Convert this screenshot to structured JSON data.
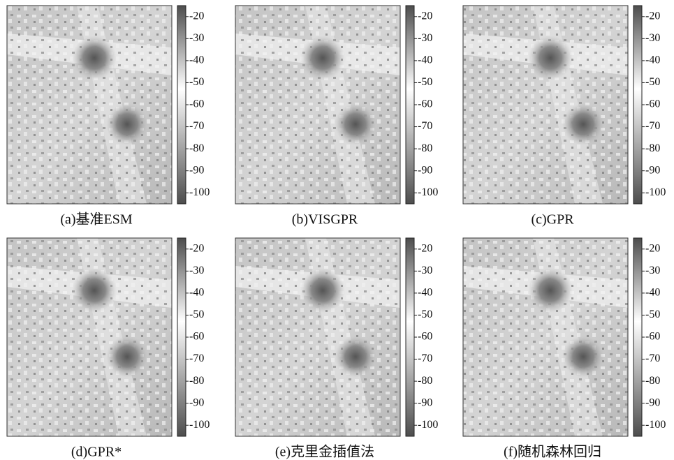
{
  "panels": [
    {
      "caption": "(a)基准ESM",
      "colorbar": {
        "range": [
          -105,
          -15
        ],
        "ticks": [
          -20,
          -30,
          -40,
          -50,
          -60,
          -70,
          -80,
          -90,
          -100
        ]
      }
    },
    {
      "caption": "(b)VISGPR",
      "colorbar": {
        "range": [
          -105,
          -15
        ],
        "ticks": [
          -20,
          -30,
          -40,
          -50,
          -60,
          -70,
          -80,
          -90,
          -100
        ]
      }
    },
    {
      "caption": "(c)GPR",
      "colorbar": {
        "range": [
          -105,
          -15
        ],
        "ticks": [
          -20,
          -30,
          -40,
          -50,
          -60,
          -70,
          -80,
          -90,
          -100
        ]
      }
    },
    {
      "caption": "(d)GPR*",
      "colorbar": {
        "range": [
          -105,
          -15
        ],
        "ticks": [
          -20,
          -30,
          -40,
          -50,
          -60,
          -70,
          -80,
          -90,
          -100
        ]
      }
    },
    {
      "caption": "(e)克里金插值法",
      "colorbar": {
        "range": [
          -105,
          -15
        ],
        "ticks": [
          -20,
          -30,
          -40,
          -50,
          -60,
          -70,
          -80,
          -90,
          -100
        ]
      }
    },
    {
      "caption": "(f)随机森林回归",
      "colorbar": {
        "range": [
          -105,
          -15
        ],
        "ticks": [
          -20,
          -30,
          -40,
          -50,
          -60,
          -70,
          -80,
          -90,
          -100
        ]
      }
    }
  ]
}
